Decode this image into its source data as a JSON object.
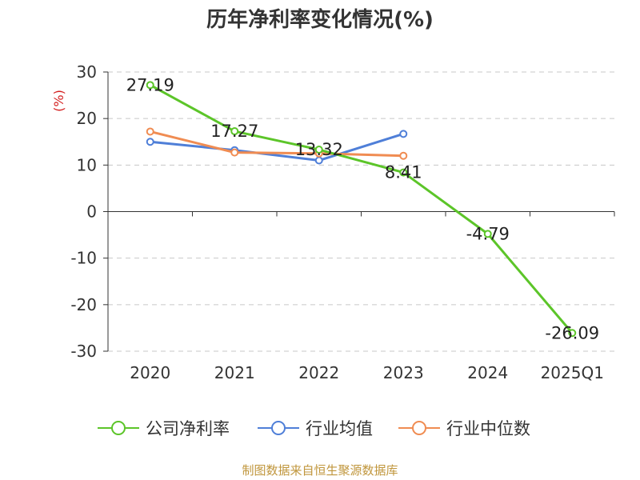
{
  "title": "历年净利率变化情况(%)",
  "source": "制图数据来自恒生聚源数据库",
  "chart_data": {
    "type": "line",
    "categories": [
      "2020",
      "2021",
      "2022",
      "2023",
      "2024",
      "2025Q1"
    ],
    "ylabel": "(%)",
    "ylim": [
      -30,
      30
    ],
    "yticks": [
      30,
      20,
      10,
      0,
      -10,
      -20,
      -30
    ],
    "grid": true,
    "legend_position": "bottom",
    "series": [
      {
        "name": "公司净利率",
        "color": "#5cc529",
        "values": [
          27.19,
          17.27,
          13.32,
          8.41,
          -4.79,
          -26.09
        ],
        "labels": [
          "27.19",
          "17.27",
          "13.32",
          "8.41",
          "-4.79",
          "-26.09"
        ]
      },
      {
        "name": "行业均值",
        "color": "#4f7fd8",
        "values": [
          15.0,
          13.2,
          11.0,
          16.7,
          null,
          null
        ]
      },
      {
        "name": "行业中位数",
        "color": "#f08c52",
        "values": [
          17.2,
          12.7,
          12.5,
          12.0,
          null,
          null
        ]
      }
    ]
  }
}
